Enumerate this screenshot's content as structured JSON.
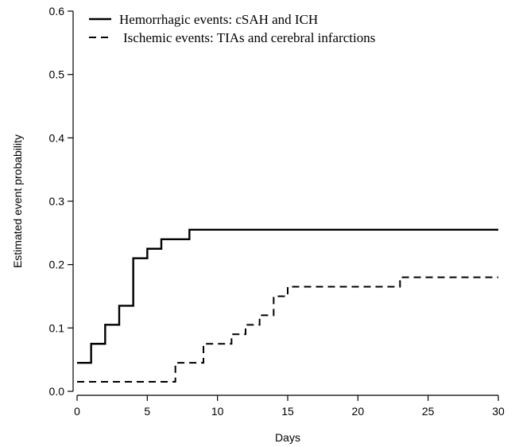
{
  "chart_data": {
    "type": "line",
    "xlabel": "Days",
    "ylabel": "Estimated event probability",
    "xlim": [
      0,
      30
    ],
    "ylim": [
      0,
      0.6
    ],
    "x_ticks": [
      0,
      5,
      10,
      15,
      20,
      25,
      30
    ],
    "y_ticks": [
      0.0,
      0.1,
      0.2,
      0.3,
      0.4,
      0.5,
      0.6
    ],
    "x_tick_labels": [
      "0",
      "5",
      "10",
      "15",
      "20",
      "25",
      "30"
    ],
    "y_tick_labels": [
      "0.0",
      "0.1",
      "0.2",
      "0.3",
      "0.4",
      "0.5",
      "0.6"
    ],
    "grid": false,
    "legend_position": "top-left",
    "step": true,
    "series": [
      {
        "name": "Hemorrhagic events: cSAH and ICH",
        "style": "solid",
        "color": "#000000",
        "x": [
          0,
          1,
          2,
          3,
          4,
          5,
          6,
          8,
          30
        ],
        "y": [
          0.045,
          0.075,
          0.105,
          0.135,
          0.21,
          0.225,
          0.24,
          0.255,
          0.255
        ]
      },
      {
        "name": "Ischemic events: TIAs and cerebral infarctions",
        "style": "dashed",
        "color": "#000000",
        "x": [
          0,
          7,
          9,
          11,
          12,
          13,
          14,
          15,
          23,
          30
        ],
        "y": [
          0.015,
          0.045,
          0.075,
          0.09,
          0.105,
          0.12,
          0.15,
          0.165,
          0.18,
          0.18
        ]
      }
    ]
  }
}
